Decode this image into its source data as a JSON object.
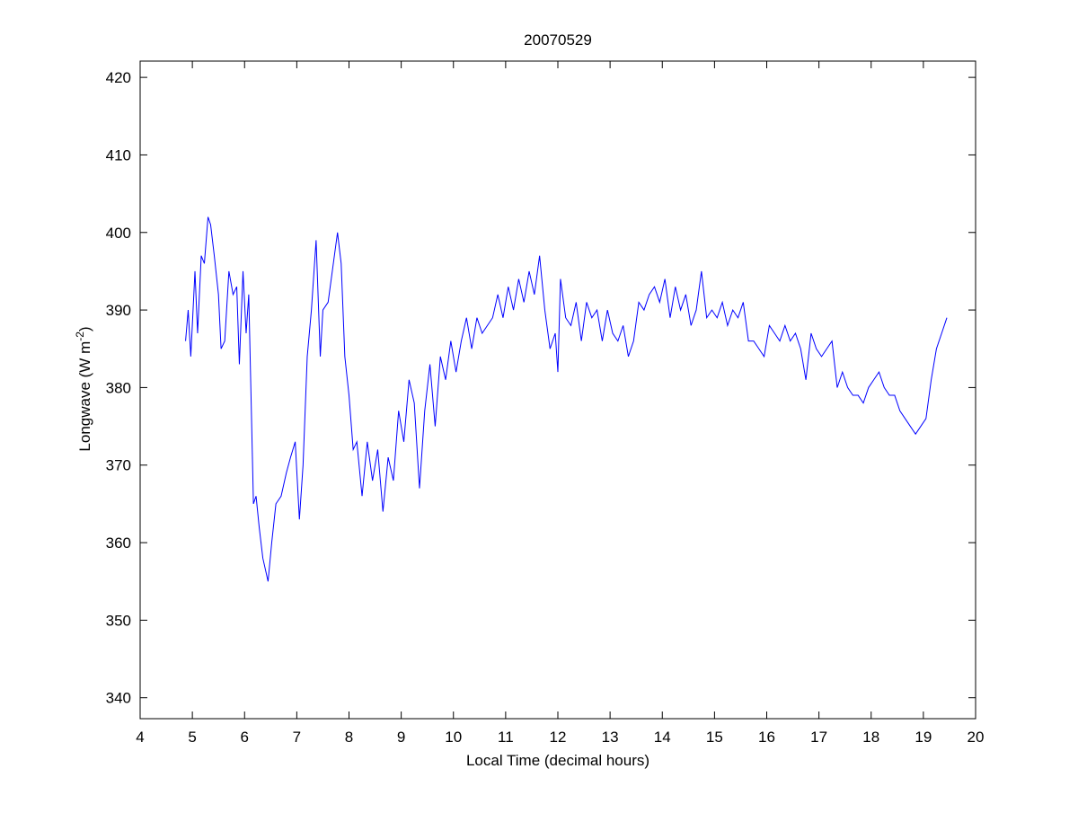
{
  "chart_data": {
    "type": "line",
    "title": "20070529",
    "xlabel": "Local Time (decimal hours)",
    "ylabel": [
      "Longwave (W m",
      "-2",
      ")"
    ],
    "x": [
      4.87,
      4.92,
      4.97,
      5.05,
      5.1,
      5.17,
      5.23,
      5.3,
      5.35,
      5.42,
      5.5,
      5.55,
      5.62,
      5.7,
      5.78,
      5.85,
      5.9,
      5.97,
      6.03,
      6.08,
      6.12,
      6.17,
      6.22,
      6.28,
      6.35,
      6.45,
      6.52,
      6.6,
      6.7,
      6.8,
      6.88,
      6.97,
      7.05,
      7.12,
      7.2,
      7.28,
      7.37,
      7.45,
      7.5,
      7.6,
      7.7,
      7.78,
      7.85,
      7.92,
      8.0,
      8.08,
      8.15,
      8.25,
      8.35,
      8.45,
      8.55,
      8.65,
      8.75,
      8.85,
      8.95,
      9.05,
      9.15,
      9.25,
      9.35,
      9.45,
      9.55,
      9.65,
      9.75,
      9.85,
      9.95,
      10.05,
      10.15,
      10.25,
      10.35,
      10.45,
      10.55,
      10.65,
      10.75,
      10.85,
      10.95,
      11.05,
      11.15,
      11.25,
      11.35,
      11.45,
      11.55,
      11.65,
      11.75,
      11.85,
      11.95,
      12.0,
      12.05,
      12.15,
      12.25,
      12.35,
      12.45,
      12.55,
      12.65,
      12.75,
      12.85,
      12.95,
      13.05,
      13.15,
      13.25,
      13.35,
      13.45,
      13.55,
      13.65,
      13.75,
      13.85,
      13.95,
      14.05,
      14.15,
      14.25,
      14.35,
      14.45,
      14.55,
      14.65,
      14.75,
      14.85,
      14.95,
      15.05,
      15.15,
      15.25,
      15.35,
      15.45,
      15.55,
      15.65,
      15.75,
      15.85,
      15.95,
      16.05,
      16.15,
      16.25,
      16.35,
      16.45,
      16.55,
      16.65,
      16.75,
      16.85,
      16.95,
      17.05,
      17.15,
      17.25,
      17.35,
      17.45,
      17.55,
      17.65,
      17.75,
      17.85,
      17.95,
      18.05,
      18.15,
      18.25,
      18.35,
      18.45,
      18.55,
      18.65,
      18.75,
      18.85,
      18.95,
      19.05,
      19.15,
      19.25,
      19.35,
      19.45
    ],
    "values": [
      386,
      390,
      384,
      395,
      387,
      397,
      396,
      402,
      401,
      397,
      392,
      385,
      386,
      395,
      392,
      393,
      383,
      395,
      387,
      392,
      380,
      365,
      366,
      362,
      358,
      355,
      360,
      365,
      366,
      369,
      371,
      373,
      363,
      370,
      384,
      390,
      399,
      384,
      390,
      391,
      396,
      400,
      396,
      384,
      379,
      372,
      373,
      366,
      373,
      368,
      372,
      364,
      371,
      368,
      377,
      373,
      381,
      378,
      367,
      377,
      383,
      375,
      384,
      381,
      386,
      382,
      386,
      389,
      385,
      389,
      387,
      388,
      389,
      392,
      389,
      393,
      390,
      394,
      391,
      395,
      392,
      397,
      390,
      385,
      387,
      382,
      394,
      389,
      388,
      391,
      386,
      391,
      389,
      390,
      386,
      390,
      387,
      386,
      388,
      384,
      386,
      391,
      390,
      392,
      393,
      391,
      394,
      389,
      393,
      390,
      392,
      388,
      390,
      395,
      389,
      390,
      389,
      391,
      388,
      390,
      389,
      391,
      386,
      386,
      385,
      384,
      388,
      387,
      386,
      388,
      386,
      387,
      385,
      381,
      387,
      385,
      384,
      385,
      386,
      380,
      382,
      380,
      379,
      379,
      378,
      380,
      381,
      382,
      380,
      379,
      379,
      377,
      376,
      375,
      374,
      375,
      376,
      381,
      385,
      387,
      389
    ],
    "color": "#0000ff",
    "xlim": [
      4,
      20
    ],
    "xticks": [
      4,
      5,
      6,
      7,
      8,
      9,
      10,
      11,
      12,
      13,
      14,
      15,
      16,
      17,
      18,
      19,
      20
    ],
    "ylim": [
      337.3,
      422.1
    ],
    "yticks": [
      340,
      350,
      360,
      370,
      380,
      390,
      400,
      410,
      420
    ]
  }
}
